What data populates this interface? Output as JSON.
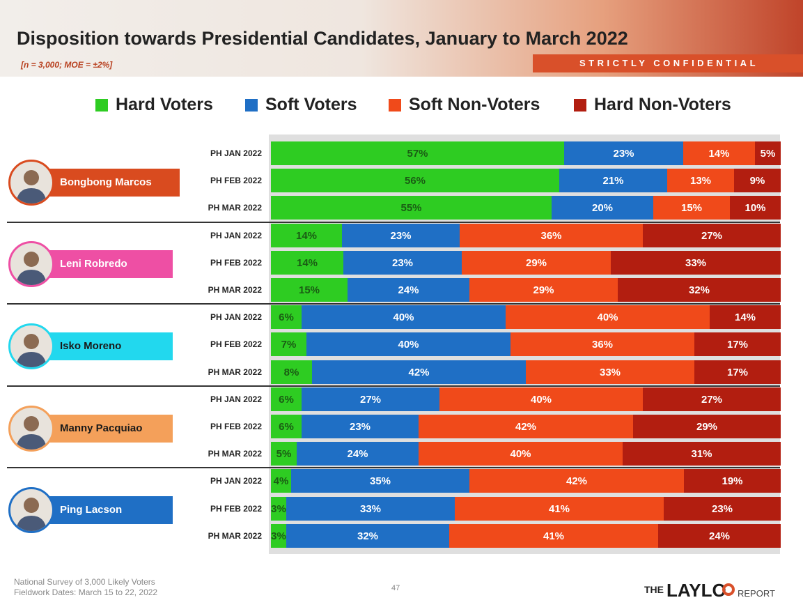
{
  "header": {
    "title": "Disposition towards Presidential Candidates, January to March 2022",
    "subtitle": "[n = 3,000; MOE = ±2%]",
    "confidential": "STRICTLY CONFIDENTIAL"
  },
  "colors": {
    "hard_voters": "#2ecc22",
    "soft_voters": "#1f6fc5",
    "soft_non_voters": "#f04a1a",
    "hard_non_voters": "#b21e10"
  },
  "legend": [
    {
      "label": "Hard Voters",
      "color": "#2ecc22"
    },
    {
      "label": "Soft Voters",
      "color": "#1f6fc5"
    },
    {
      "label": "Soft Non-Voters",
      "color": "#f04a1a"
    },
    {
      "label": "Hard Non-Voters",
      "color": "#b21e10"
    }
  ],
  "chart_data": {
    "type": "bar",
    "orientation": "horizontal",
    "stacked": true,
    "title": "Disposition towards Presidential Candidates, January to March 2022",
    "series_names": [
      "Hard Voters",
      "Soft Voters",
      "Soft Non-Voters",
      "Hard Non-Voters"
    ],
    "groups": [
      {
        "candidate": "Bongbong Marcos",
        "badge_color": "#d94b1f",
        "text_color": "#ffffff",
        "rows": [
          {
            "label": "PH JAN 2022",
            "values": [
              57,
              23,
              14,
              5
            ]
          },
          {
            "label": "PH FEB 2022",
            "values": [
              56,
              21,
              13,
              9
            ]
          },
          {
            "label": "PH MAR 2022",
            "values": [
              55,
              20,
              15,
              10
            ]
          }
        ]
      },
      {
        "candidate": "Leni Robredo",
        "badge_color": "#ee4fa4",
        "text_color": "#ffffff",
        "rows": [
          {
            "label": "PH JAN 2022",
            "values": [
              14,
              23,
              36,
              27
            ]
          },
          {
            "label": "PH FEB 2022",
            "values": [
              14,
              23,
              29,
              33
            ]
          },
          {
            "label": "PH MAR 2022",
            "values": [
              15,
              24,
              29,
              32
            ]
          }
        ]
      },
      {
        "candidate": "Isko Moreno",
        "badge_color": "#22d8ee",
        "text_color": "#1a1a1a",
        "rows": [
          {
            "label": "PH JAN 2022",
            "values": [
              6,
              40,
              40,
              14
            ]
          },
          {
            "label": "PH FEB 2022",
            "values": [
              7,
              40,
              36,
              17
            ]
          },
          {
            "label": "PH MAR 2022",
            "values": [
              8,
              42,
              33,
              17
            ]
          }
        ]
      },
      {
        "candidate": "Manny Pacquiao",
        "badge_color": "#f4a05a",
        "text_color": "#1a1a1a",
        "rows": [
          {
            "label": "PH JAN 2022",
            "values": [
              6,
              27,
              40,
              27
            ]
          },
          {
            "label": "PH FEB 2022",
            "values": [
              6,
              23,
              42,
              29
            ]
          },
          {
            "label": "PH MAR 2022",
            "values": [
              5,
              24,
              40,
              31
            ]
          }
        ]
      },
      {
        "candidate": "Ping Lacson",
        "badge_color": "#1f6fc5",
        "text_color": "#ffffff",
        "rows": [
          {
            "label": "PH JAN 2022",
            "values": [
              4,
              35,
              42,
              19
            ]
          },
          {
            "label": "PH FEB 2022",
            "values": [
              3,
              33,
              41,
              23
            ]
          },
          {
            "label": "PH MAR 2022",
            "values": [
              3,
              32,
              41,
              24
            ]
          }
        ]
      }
    ]
  },
  "footer": {
    "source_line1": "National Survey of 3,000 Likely Voters",
    "source_line2": "Fieldwork Dates: March 15 to 22, 2022",
    "page": "47",
    "logo_the": "THE",
    "logo_main": "LAYLO",
    "logo_report": "REPORT"
  }
}
